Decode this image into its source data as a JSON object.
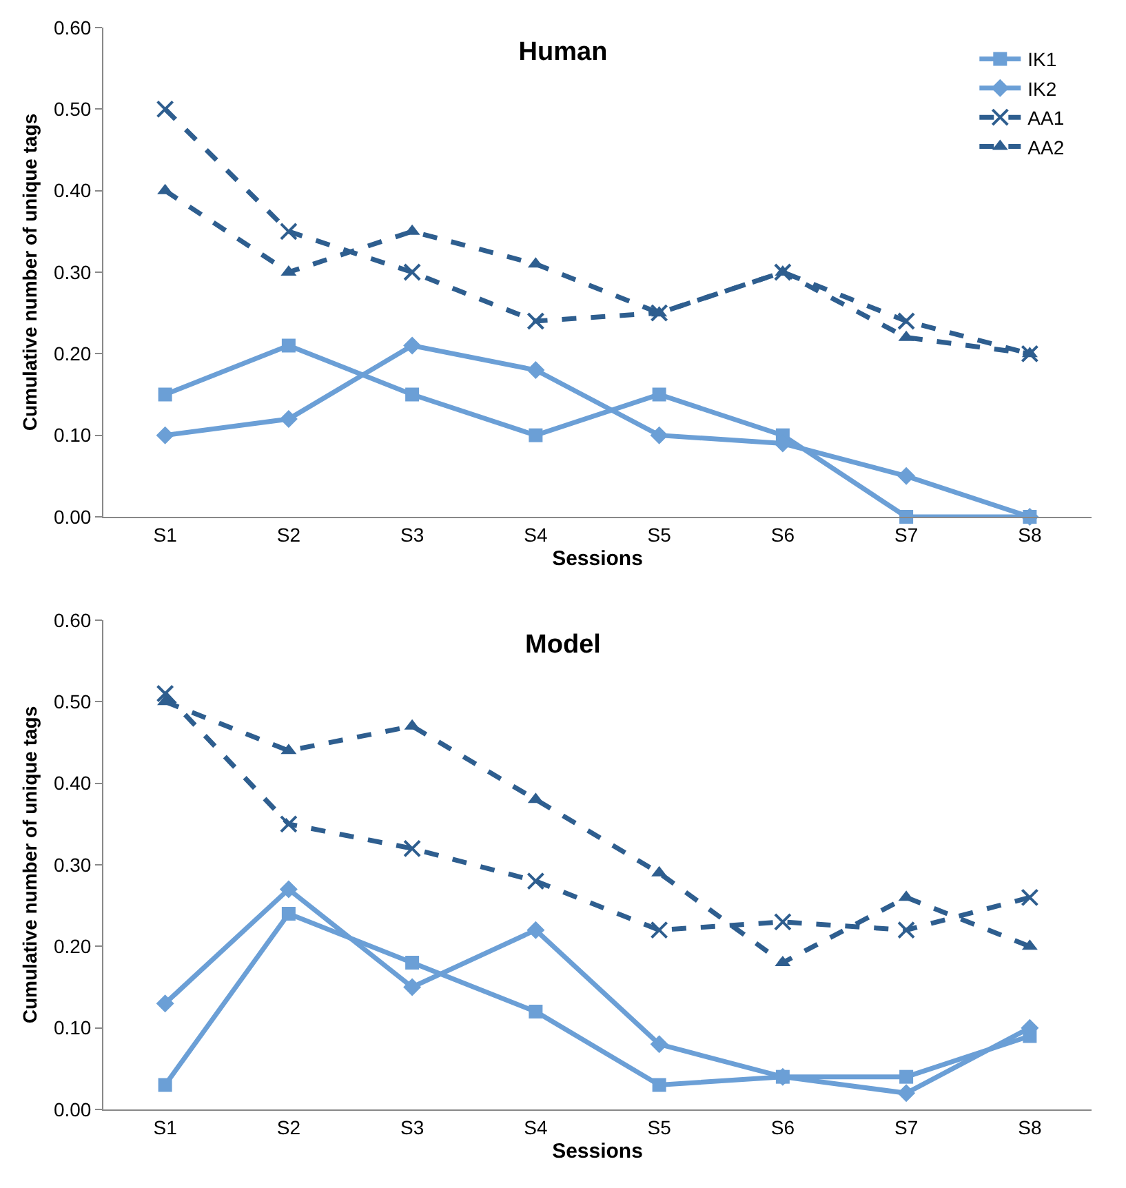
{
  "chart_data": [
    {
      "type": "line",
      "title": "Human",
      "xlabel": "Sessions",
      "ylabel": "Cumulative number of unique tags",
      "categories": [
        "S1",
        "S2",
        "S3",
        "S4",
        "S5",
        "S6",
        "S7",
        "S8"
      ],
      "ylim": [
        0,
        0.6
      ],
      "yticks": [
        {
          "value": 0,
          "label": "0.00"
        },
        {
          "value": 0.1,
          "label": "0.10"
        },
        {
          "value": 0.2,
          "label": "0.20"
        },
        {
          "value": 0.3,
          "label": "0.30"
        },
        {
          "value": 0.4,
          "label": "0.40"
        },
        {
          "value": 0.5,
          "label": "0.50"
        },
        {
          "value": 0.6,
          "label": "0.60"
        }
      ],
      "grid": false,
      "legend": "top right",
      "series": [
        {
          "name": "IK1",
          "color": "#6b9fd6",
          "marker": "square",
          "line_style": "solid",
          "values": [
            0.15,
            0.21,
            0.15,
            0.1,
            0.15,
            0.1,
            0.0,
            0.0
          ]
        },
        {
          "name": "IK2",
          "color": "#6b9fd6",
          "marker": "diamond",
          "line_style": "solid",
          "values": [
            0.1,
            0.12,
            0.21,
            0.18,
            0.1,
            0.09,
            0.05,
            0.0
          ]
        },
        {
          "name": "AA1",
          "color": "#2e5e8f",
          "marker": "cross",
          "line_style": "dashed",
          "values": [
            0.5,
            0.35,
            0.3,
            0.24,
            0.25,
            0.3,
            0.24,
            0.2
          ]
        },
        {
          "name": "AA2",
          "color": "#2e5e8f",
          "marker": "triangle",
          "line_style": "dashed",
          "values": [
            0.4,
            0.3,
            0.35,
            0.31,
            0.25,
            0.3,
            0.22,
            0.2
          ]
        }
      ]
    },
    {
      "type": "line",
      "title": "Model",
      "xlabel": "Sessions",
      "ylabel": "Cumulative number of unique tags",
      "categories": [
        "S1",
        "S2",
        "S3",
        "S4",
        "S5",
        "S6",
        "S7",
        "S8"
      ],
      "ylim": [
        0,
        0.6
      ],
      "yticks": [
        {
          "value": 0,
          "label": "0.00"
        },
        {
          "value": 0.1,
          "label": "0.10"
        },
        {
          "value": 0.2,
          "label": "0.20"
        },
        {
          "value": 0.3,
          "label": "0.30"
        },
        {
          "value": 0.4,
          "label": "0.40"
        },
        {
          "value": 0.5,
          "label": "0.50"
        },
        {
          "value": 0.6,
          "label": "0.60"
        }
      ],
      "grid": false,
      "legend": false,
      "series": [
        {
          "color": "#6b9fd6",
          "marker": "square",
          "line_style": "solid",
          "values": [
            0.03,
            0.24,
            0.18,
            0.12,
            0.03,
            0.04,
            0.04,
            0.09
          ]
        },
        {
          "color": "#6b9fd6",
          "marker": "diamond",
          "line_style": "solid",
          "values": [
            0.13,
            0.27,
            0.15,
            0.22,
            0.08,
            0.04,
            0.02,
            0.1
          ]
        },
        {
          "color": "#2e5e8f",
          "marker": "cross",
          "line_style": "dashed",
          "values": [
            0.51,
            0.35,
            0.32,
            0.28,
            0.22,
            0.23,
            0.22,
            0.26
          ]
        },
        {
          "color": "#2e5e8f",
          "marker": "triangle",
          "line_style": "dashed",
          "values": [
            0.5,
            0.44,
            0.47,
            0.38,
            0.29,
            0.18,
            0.26,
            0.2
          ]
        }
      ]
    }
  ]
}
